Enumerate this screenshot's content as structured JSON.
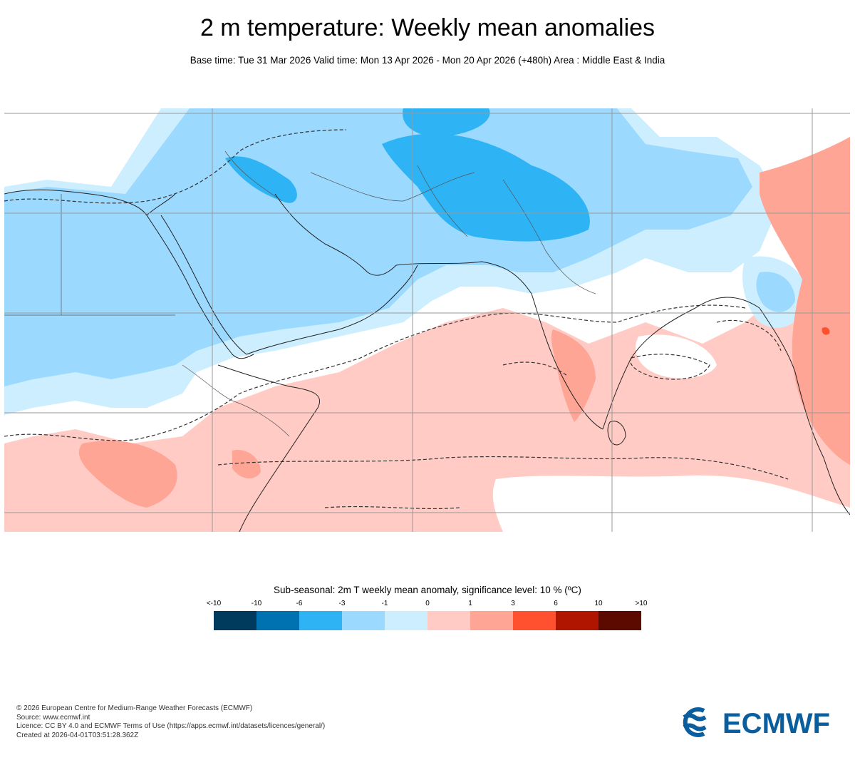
{
  "title": "2 m temperature: Weekly mean anomalies",
  "subtitle": "Base time: Tue 31 Mar 2026 Valid time: Mon 13 Apr 2026 - Mon 20 Apr 2026 (+480h) Area : Middle East & India",
  "legend": {
    "title": "Sub-seasonal: 2m T weekly mean anomaly, significance level: 10 % (ºC)",
    "ticks": [
      "<-10",
      "-10",
      "-6",
      "-3",
      "-1",
      "0",
      "1",
      "3",
      "6",
      "10",
      ">10"
    ],
    "colors": [
      "#003a5c",
      "#0072b2",
      "#2eb3f5",
      "#9cd9ff",
      "#cdeeff",
      "#ffcbc4",
      "#ffa595",
      "#ff5030",
      "#b01500",
      "#5c0a00"
    ]
  },
  "footer": {
    "lines": [
      "© 2026 European Centre for Medium-Range Weather Forecasts (ECMWF)",
      "Source: www.ecmwf.int",
      "Licence: CC BY 4.0 and ECMWF Terms of Use (https://apps.ecmwf.int/datasets/licences/general/)",
      "Created at 2026-04-01T03:51:28.362Z"
    ]
  },
  "logo": {
    "text": "ECMWF",
    "color": "#0a5e9e"
  },
  "map": {
    "colors": {
      "strong_cold": "#2eb3f5",
      "cold": "#9cd9ff",
      "slight_cold": "#cdeeff",
      "neutral": "#ffffff",
      "slight_warm": "#ffcbc4",
      "warm": "#ffa595",
      "hot": "#ff5030"
    }
  }
}
